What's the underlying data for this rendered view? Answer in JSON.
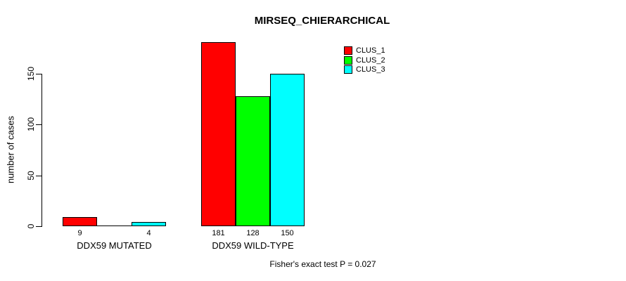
{
  "chart_data": {
    "type": "bar",
    "title": "MIRSEQ_CHIERARCHICAL",
    "ylabel": "number of cases",
    "xlabel": "",
    "categories": [
      "DDX59 MUTATED",
      "DDX59 WILD-TYPE"
    ],
    "series": [
      {
        "name": "CLUS_1",
        "color": "#FF0000",
        "values": [
          9,
          181
        ]
      },
      {
        "name": "CLUS_2",
        "color": "#00FF00",
        "values": [
          0,
          128
        ]
      },
      {
        "name": "CLUS_3",
        "color": "#00FFFF",
        "values": [
          4,
          150
        ]
      }
    ],
    "bar_labels": [
      [
        "9",
        "",
        "4"
      ],
      [
        "181",
        "128",
        "150"
      ]
    ],
    "yticks": [
      0,
      50,
      100,
      150
    ],
    "ylim": [
      0,
      181
    ],
    "grid": false,
    "legend_position": "top-right",
    "annotation": "Fisher's exact test P = 0.027"
  },
  "colors": {
    "background": "#FFFFFF",
    "axis": "#000000",
    "bar_border": "#000000"
  }
}
